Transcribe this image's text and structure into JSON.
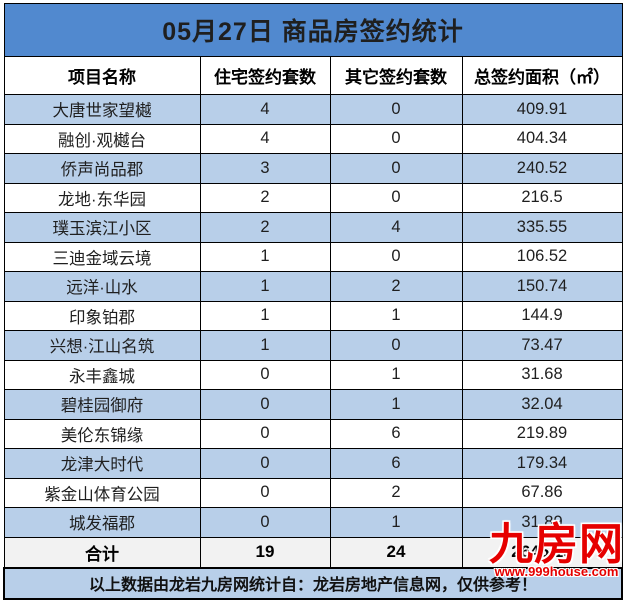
{
  "title": "05月27日 商品房签约统计",
  "table": {
    "columns": [
      "项目名称",
      "住宅签约套数",
      "其它签约套数",
      "总签约面积（㎡）"
    ],
    "rows": [
      {
        "name": "大唐世家望樾",
        "residential": "4",
        "other": "0",
        "area": "409.91"
      },
      {
        "name": "融创·观樾台",
        "residential": "4",
        "other": "0",
        "area": "404.34"
      },
      {
        "name": "侨声尚品郡",
        "residential": "3",
        "other": "0",
        "area": "240.52"
      },
      {
        "name": "龙地·东华园",
        "residential": "2",
        "other": "0",
        "area": "216.5"
      },
      {
        "name": "璞玉滨江小区",
        "residential": "2",
        "other": "4",
        "area": "335.55"
      },
      {
        "name": "三迪金域云境",
        "residential": "1",
        "other": "0",
        "area": "106.52"
      },
      {
        "name": "远洋·山水",
        "residential": "1",
        "other": "2",
        "area": "150.74"
      },
      {
        "name": "印象铂郡",
        "residential": "1",
        "other": "1",
        "area": "144.9"
      },
      {
        "name": "兴想·江山名筑",
        "residential": "1",
        "other": "0",
        "area": "73.47"
      },
      {
        "name": "永丰鑫城",
        "residential": "0",
        "other": "1",
        "area": "31.68"
      },
      {
        "name": "碧桂园御府",
        "residential": "0",
        "other": "1",
        "area": "32.04"
      },
      {
        "name": "美伦东锦缘",
        "residential": "0",
        "other": "6",
        "area": "219.89"
      },
      {
        "name": "龙津大时代",
        "residential": "0",
        "other": "6",
        "area": "179.34"
      },
      {
        "name": "紫金山体育公园",
        "residential": "0",
        "other": "2",
        "area": "67.86"
      },
      {
        "name": "城发福郡",
        "residential": "0",
        "other": "1",
        "area": "31.89"
      }
    ],
    "total": {
      "label": "合计",
      "residential": "19",
      "other": "24",
      "area": "2645.15"
    }
  },
  "footer": {
    "note": "以上数据由龙岩九房网统计自：龙岩房地产信息网，仅供参考！"
  },
  "watermark": {
    "brand": "九房网",
    "url": "www.999house.com"
  },
  "colors": {
    "title_bg": "#5189CF",
    "band_bg": "#B8CFE9",
    "total_bg": "#F2F2F2",
    "watermark_red": "#E60000"
  }
}
